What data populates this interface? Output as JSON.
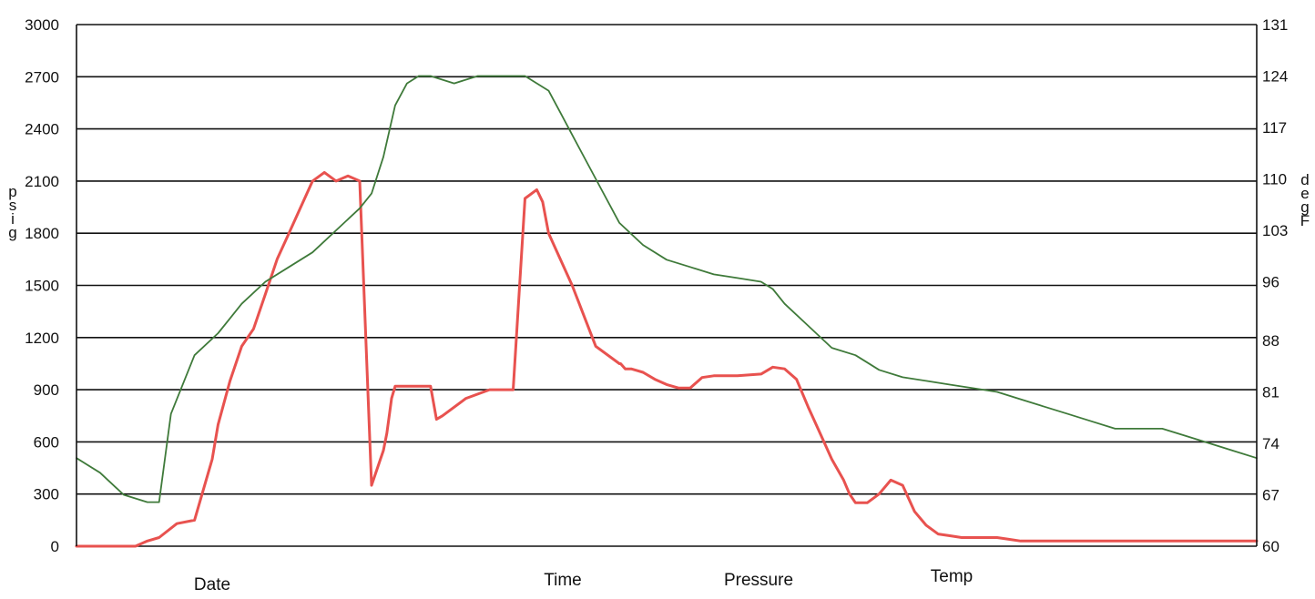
{
  "chart_data": {
    "type": "line",
    "left_axis": {
      "label_letters": [
        "p",
        "s",
        "i",
        "g"
      ],
      "ylim": [
        0,
        3000
      ],
      "ticks": [
        0,
        300,
        600,
        900,
        1200,
        1500,
        1800,
        2100,
        2400,
        2700,
        3000
      ]
    },
    "right_axis": {
      "label_letters": [
        "d",
        "e",
        "g",
        "F"
      ],
      "ylim": [
        60,
        131
      ],
      "ticks": [
        60,
        67,
        74,
        81,
        88,
        96,
        103,
        110,
        117,
        124,
        131
      ]
    },
    "x_range": [
      0,
      100
    ],
    "grid": true,
    "footer_labels": [
      "Date",
      "Time",
      "Pressure",
      "Temp"
    ],
    "series": [
      {
        "axis": "left",
        "color": "#e8524f",
        "x": [
          0,
          5,
          6,
          7,
          8.5,
          10,
          11.5,
          12,
          13,
          14,
          15,
          16,
          17,
          18,
          19,
          20,
          21,
          22,
          23,
          24,
          25,
          25.5,
          26,
          26.3,
          26.5,
          26.7,
          27,
          28,
          29,
          30,
          30.5,
          31,
          33,
          35,
          36,
          36.5,
          37,
          38,
          39,
          39.5,
          40,
          42,
          44,
          46,
          46.1,
          46.5,
          47,
          47.5,
          48,
          49,
          50,
          51,
          52,
          53,
          54,
          56,
          58,
          59,
          60,
          61,
          62,
          63,
          64,
          65,
          65.5,
          66,
          67,
          68,
          69,
          70,
          71,
          72,
          73,
          74,
          75,
          76,
          77,
          78,
          79,
          80,
          81,
          82,
          83,
          84,
          86,
          88,
          90,
          92,
          94,
          96,
          97,
          98,
          100
        ],
        "values": [
          0,
          0,
          30,
          50,
          130,
          150,
          500,
          700,
          950,
          1150,
          1250,
          1450,
          1650,
          1800,
          1950,
          2100,
          2150,
          2100,
          2130,
          2100,
          350,
          450,
          550,
          650,
          750,
          850,
          920,
          920,
          920,
          920,
          730,
          750,
          850,
          900,
          900,
          900,
          900,
          2000,
          2050,
          1980,
          1800,
          1500,
          1150,
          1050,
          1050,
          1020,
          1020,
          1010,
          1000,
          960,
          930,
          910,
          910,
          970,
          980,
          980,
          990,
          1030,
          1020,
          960,
          800,
          650,
          500,
          380,
          300,
          250,
          250,
          300,
          380,
          350,
          200,
          120,
          70,
          60,
          50,
          50,
          50,
          50,
          40,
          30,
          30,
          30,
          30,
          30,
          30,
          30,
          30,
          30,
          30,
          30,
          30,
          30,
          30
        ]
      },
      {
        "axis": "right",
        "color": "#3f7a3a",
        "x": [
          0,
          2,
          4,
          6,
          7,
          8,
          10,
          12,
          13,
          14,
          16,
          18,
          20,
          22,
          24,
          25,
          26,
          27,
          28,
          29,
          30,
          32,
          34,
          35,
          36,
          38,
          40,
          41,
          42,
          44,
          46,
          48,
          50,
          52,
          54,
          56,
          58,
          59,
          60,
          62,
          64,
          66,
          67,
          68,
          70,
          72,
          74,
          76,
          78,
          80,
          82,
          84,
          86,
          88,
          90,
          92,
          94,
          96,
          98,
          100
        ],
        "values": [
          72,
          70,
          67,
          66,
          66,
          78,
          86,
          89,
          91,
          93,
          96,
          98,
          100,
          103,
          106,
          108,
          113,
          120,
          123,
          124,
          124,
          123,
          124,
          124,
          124,
          124,
          122,
          119,
          116,
          110,
          104,
          101,
          99,
          98,
          97,
          96.5,
          96,
          95,
          93,
          90,
          87,
          86,
          85,
          84,
          83,
          82.5,
          82,
          81.5,
          81,
          80,
          79,
          78,
          77,
          76,
          76,
          76,
          75,
          74,
          73,
          72
        ]
      }
    ]
  }
}
